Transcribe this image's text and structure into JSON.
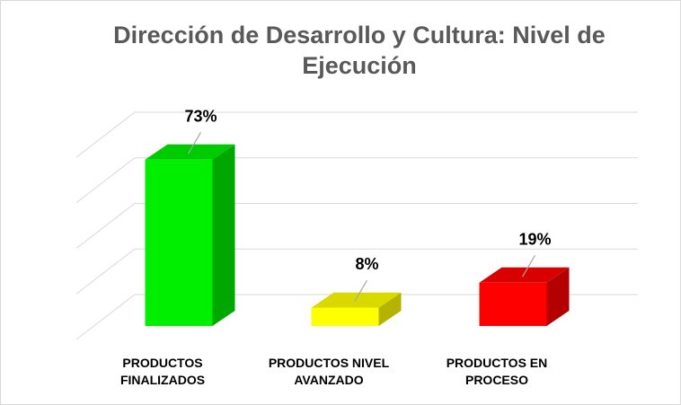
{
  "chart_data": {
    "type": "bar3d",
    "title": "Dirección de Desarrollo y Cultura: Nivel de Ejecución",
    "categories": [
      "PRODUCTOS FINALIZADOS",
      "PRODUCTOS NIVEL AVANZADO",
      "PRODUCTOS EN PROCESO"
    ],
    "values": [
      73,
      8,
      19
    ],
    "value_labels": [
      "73%",
      "8%",
      "19%"
    ],
    "colors": [
      "#00ee00",
      "#ffff00",
      "#ff0000"
    ],
    "ylim": [
      0,
      80
    ],
    "yticks": [
      0,
      20,
      40,
      60,
      80
    ],
    "grid": true
  }
}
